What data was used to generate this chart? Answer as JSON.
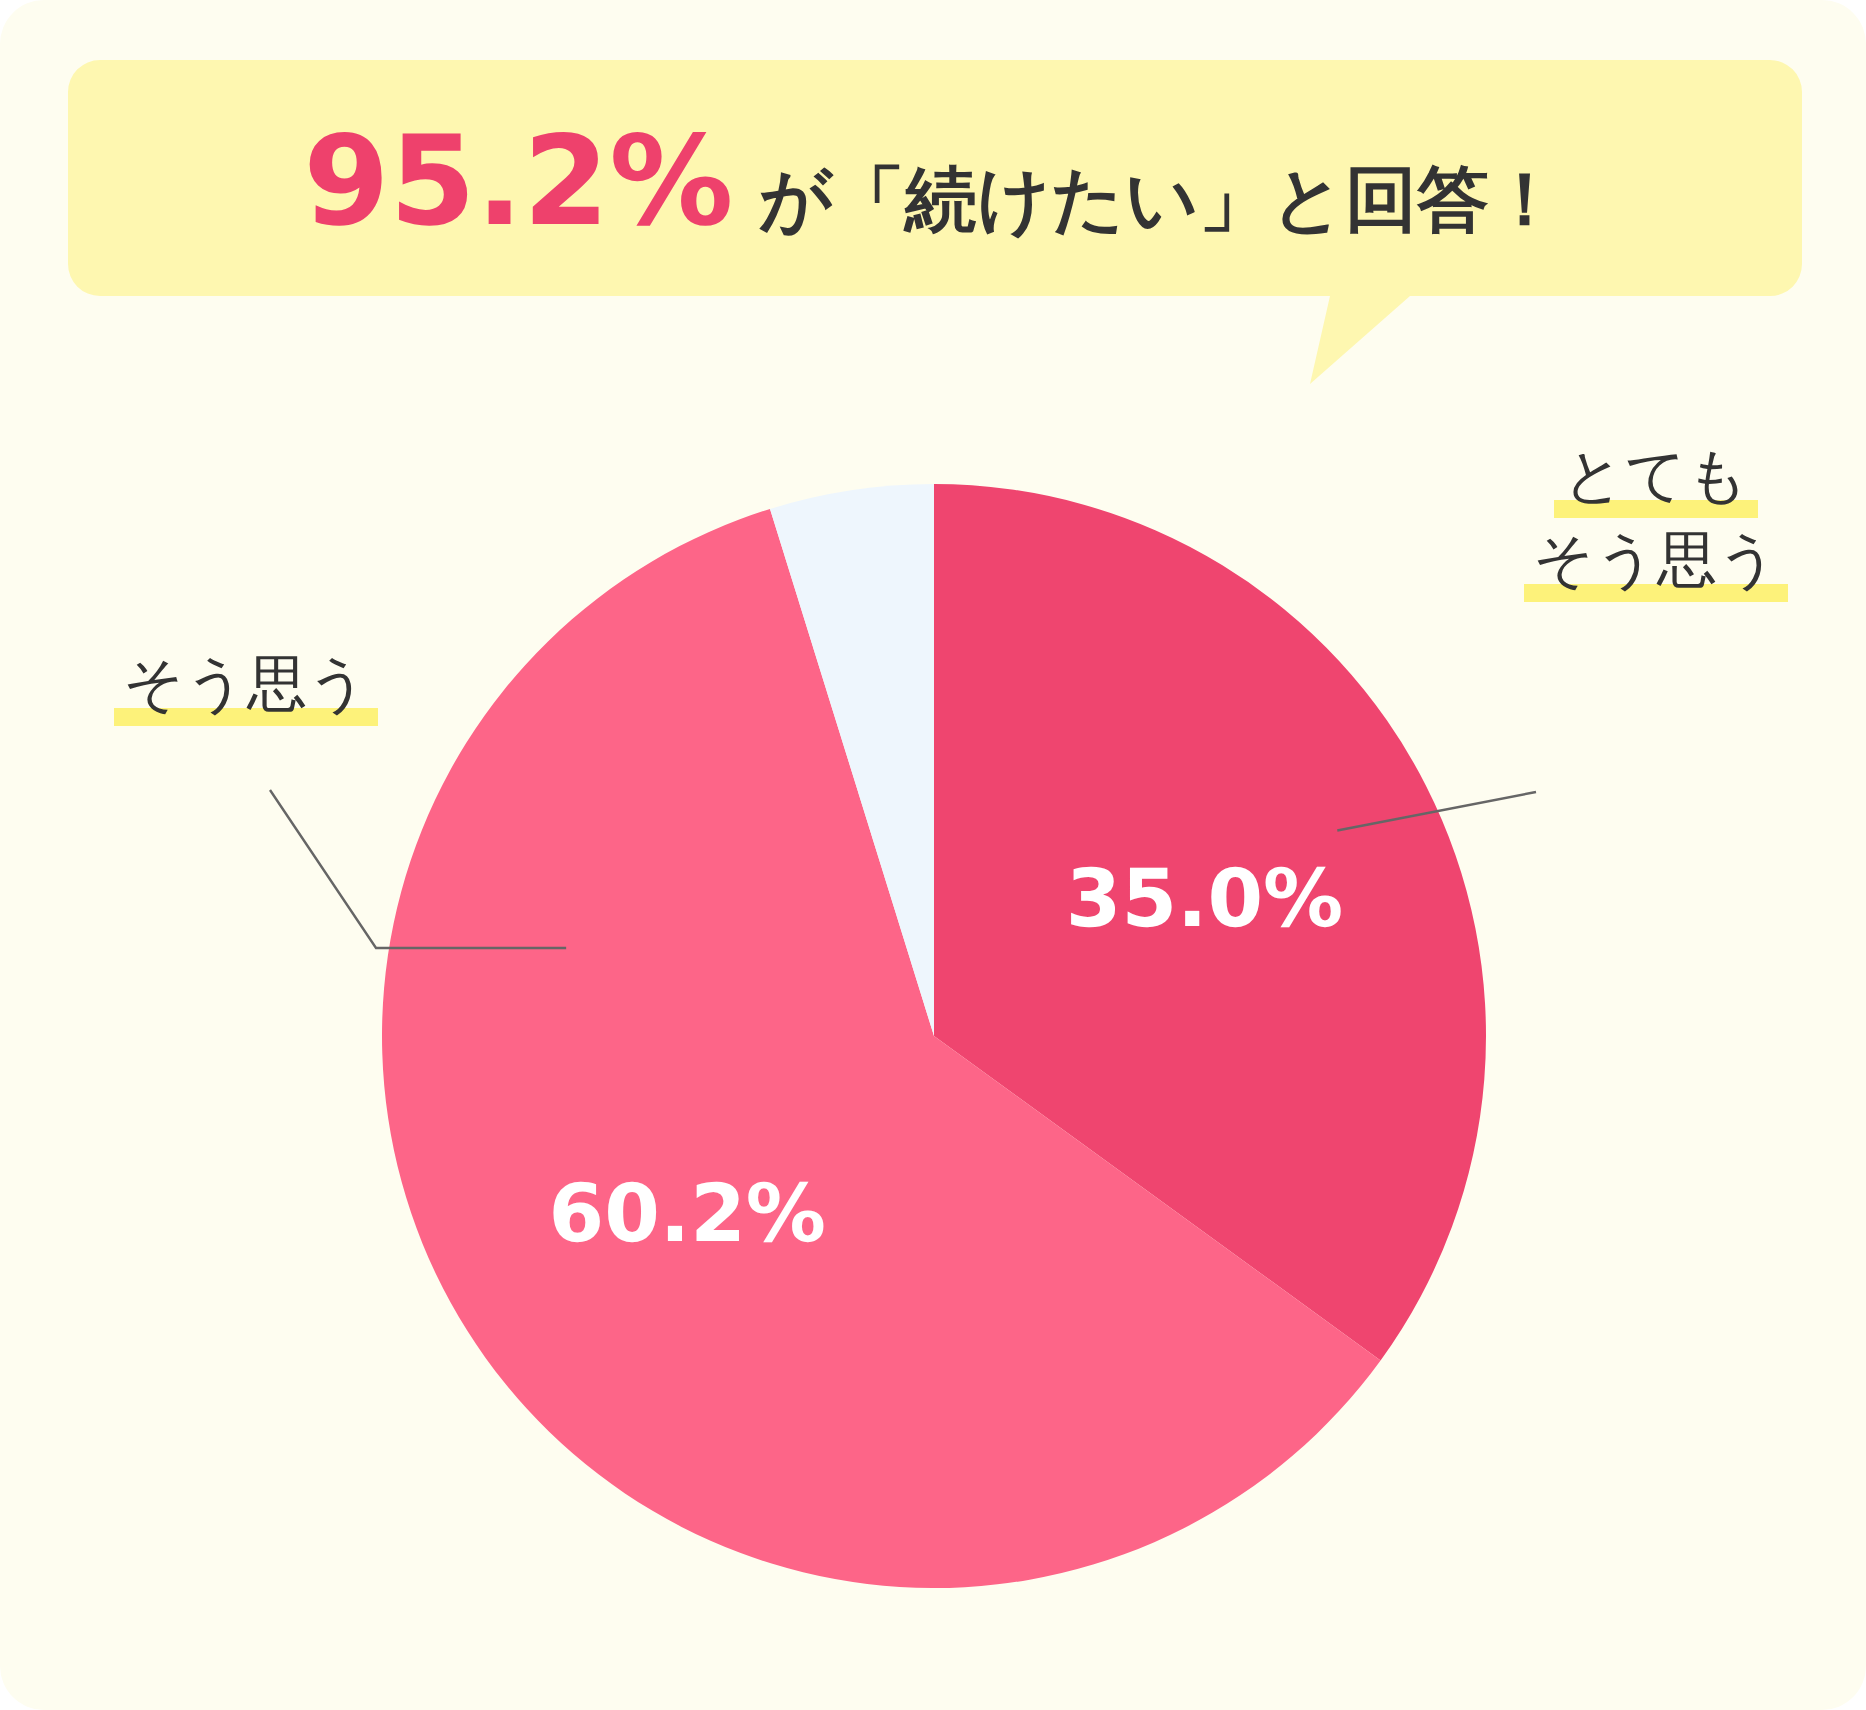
{
  "chart_data": {
    "type": "pie",
    "title": "**95.2%** が「続けたい」と回答！",
    "categories": [
      "とてもそう思う",
      "そう思う",
      null
    ],
    "values": [
      35.0,
      60.2,
      4.8
    ],
    "colors": [
      "#ef456f",
      "#fd6588",
      "#eef6fd"
    ],
    "value_labels": [
      "35.0%",
      "60.2%",
      null
    ]
  }
}
